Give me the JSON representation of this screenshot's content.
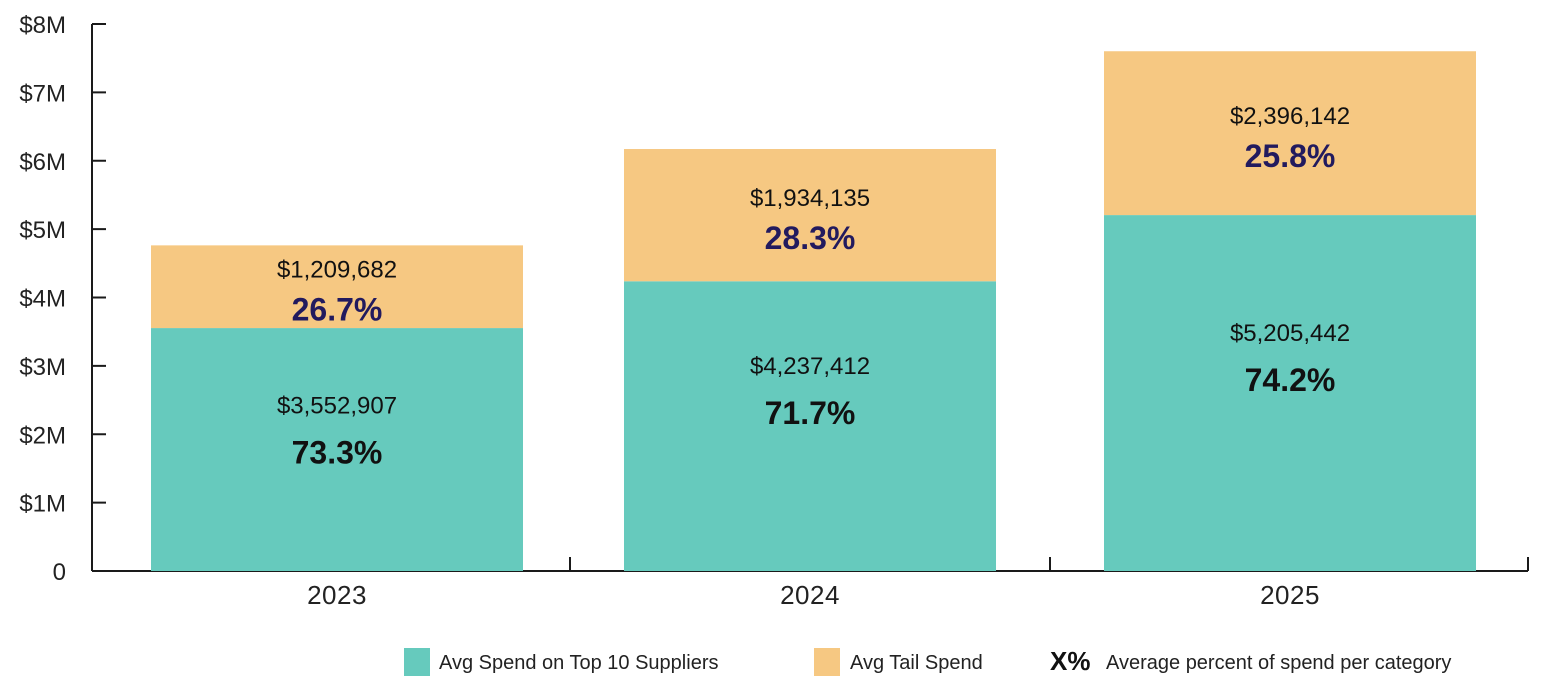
{
  "chart_data": {
    "type": "bar",
    "stacked": true,
    "categories": [
      "2023",
      "2024",
      "2025"
    ],
    "series": [
      {
        "name": "Avg Spend on Top 10 Suppliers",
        "color": "#66CABD",
        "values": [
          3552907,
          4237412,
          5205442
        ],
        "value_labels": [
          "$3,552,907",
          "$4,237,412",
          "$5,205,442"
        ],
        "percent_labels": [
          "73.3%",
          "71.7%",
          "74.2%"
        ],
        "percent_color": "#111111"
      },
      {
        "name": "Avg Tail Spend",
        "color": "#F6C882",
        "values": [
          1209682,
          1934135,
          2396142
        ],
        "value_labels": [
          "$1,209,682",
          "$1,934,135",
          "$2,396,142"
        ],
        "percent_labels": [
          "26.7%",
          "28.3%",
          "25.8%"
        ],
        "percent_color": "#221A5E"
      }
    ],
    "ylim": [
      0,
      8000000
    ],
    "yticks": [
      0,
      1000000,
      2000000,
      3000000,
      4000000,
      5000000,
      6000000,
      7000000,
      8000000
    ],
    "ytick_labels": [
      "0",
      "$1M",
      "$2M",
      "$3M",
      "$4M",
      "$5M",
      "$6M",
      "$7M",
      "$8M"
    ],
    "legend": {
      "position": "bottom-right",
      "extra_marker": "X%",
      "extra_text": "Average percent of spend per category"
    },
    "grid": false,
    "title": "",
    "xlabel": "",
    "ylabel": ""
  }
}
